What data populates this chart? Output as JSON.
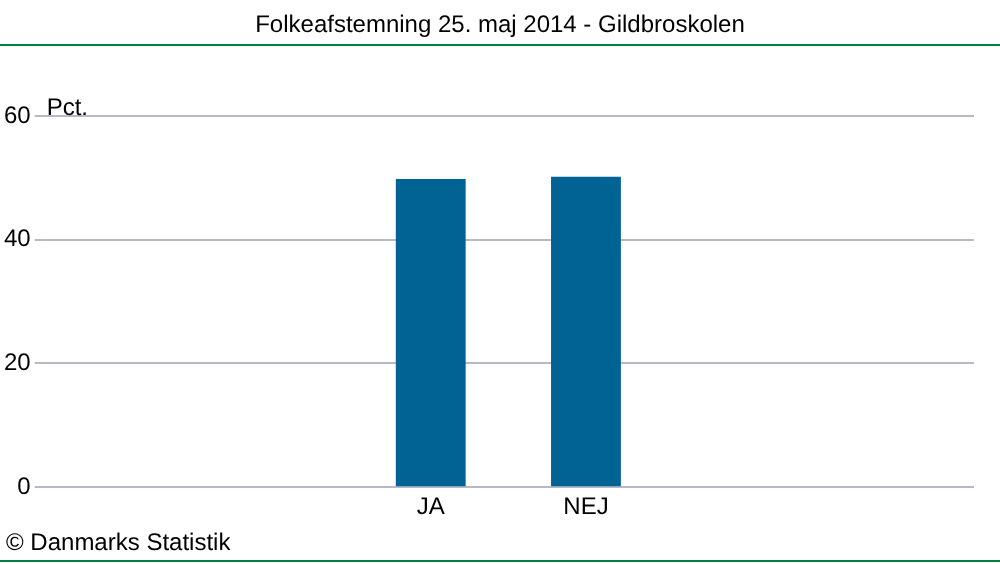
{
  "chart_data": {
    "type": "bar",
    "title": "Folkeafstemning 25. maj 2014 - Gildbroskolen",
    "ylabel": "Pct.",
    "annotations": [
      "© Danmarks Statistik"
    ],
    "categories": [
      "JA",
      "NEJ"
    ],
    "values": [
      49.8,
      50.2
    ],
    "color": "#006394",
    "ylim": [
      0,
      60
    ],
    "yticks": [
      0,
      20,
      40,
      60
    ],
    "grid": "y",
    "legend": false
  }
}
